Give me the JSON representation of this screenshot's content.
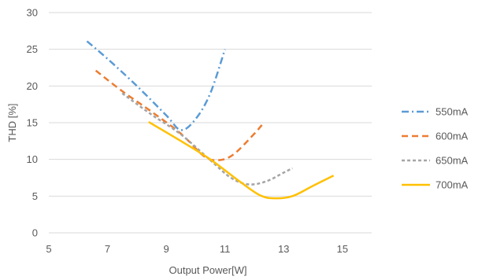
{
  "chart_data": {
    "type": "line",
    "title": "",
    "xlabel": "Output Power[W]",
    "ylabel": "THD [%]",
    "xlim": [
      5,
      16
    ],
    "ylim": [
      0,
      30
    ],
    "xticks": [
      5,
      7,
      9,
      11,
      13,
      15
    ],
    "yticks": [
      0,
      5,
      10,
      15,
      20,
      25,
      30
    ],
    "grid": "horizontal",
    "legend_position": "right",
    "series": [
      {
        "name": "550mA",
        "color": "#5b9bd5",
        "dash": "dash-dot",
        "points": [
          [
            6.3,
            26.1
          ],
          [
            7.0,
            23.7
          ],
          [
            8.0,
            20.0
          ],
          [
            9.0,
            16.0
          ],
          [
            9.5,
            14.0
          ],
          [
            10.0,
            15.5
          ],
          [
            10.5,
            19.0
          ],
          [
            11.0,
            25.0
          ]
        ]
      },
      {
        "name": "600mA",
        "color": "#ed7d31",
        "dash": "dash",
        "points": [
          [
            6.6,
            22.1
          ],
          [
            7.5,
            19.3
          ],
          [
            8.5,
            16.5
          ],
          [
            9.5,
            13.5
          ],
          [
            10.3,
            10.4
          ],
          [
            10.8,
            9.9
          ],
          [
            11.3,
            10.7
          ],
          [
            12.0,
            13.5
          ],
          [
            12.3,
            14.9
          ]
        ]
      },
      {
        "name": "650mA",
        "color": "#a5a5a5",
        "dash": "short-dash",
        "points": [
          [
            7.5,
            19.0
          ],
          [
            8.5,
            16.1
          ],
          [
            9.5,
            13.4
          ],
          [
            10.5,
            9.9
          ],
          [
            11.2,
            7.5
          ],
          [
            11.8,
            6.6
          ],
          [
            12.4,
            7.0
          ],
          [
            13.0,
            8.2
          ],
          [
            13.3,
            8.8
          ]
        ]
      },
      {
        "name": "700mA",
        "color": "#ffc000",
        "dash": "solid",
        "points": [
          [
            8.4,
            15.1
          ],
          [
            9.5,
            12.5
          ],
          [
            10.5,
            10.0
          ],
          [
            11.5,
            7.0
          ],
          [
            12.2,
            5.1
          ],
          [
            12.7,
            4.7
          ],
          [
            13.3,
            5.0
          ],
          [
            14.0,
            6.4
          ],
          [
            14.7,
            7.8
          ]
        ]
      }
    ]
  }
}
